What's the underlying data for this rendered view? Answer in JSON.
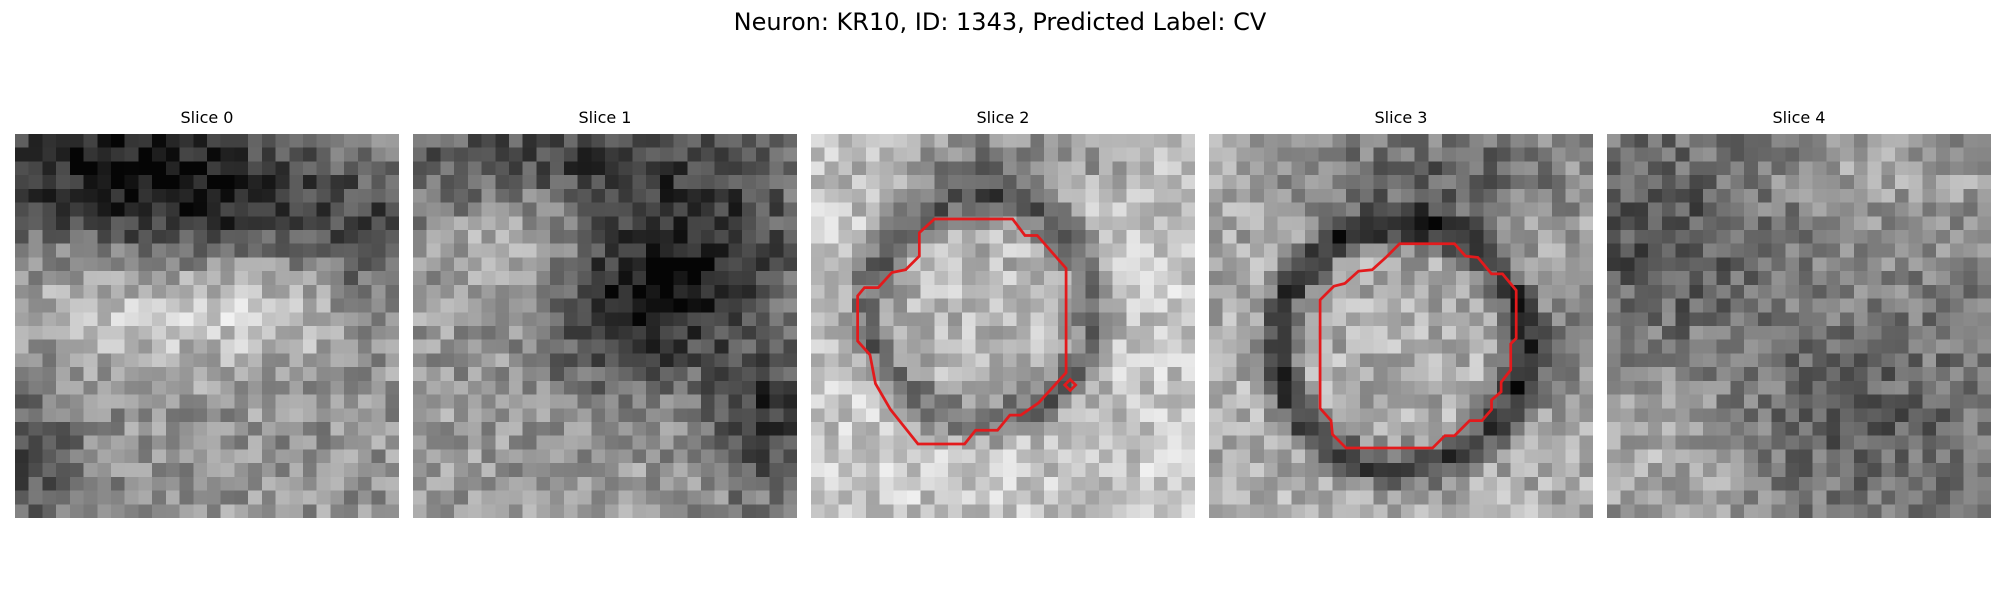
{
  "figure": {
    "title": "Neuron: KR10, ID: 1343, Predicted Label: CV",
    "contour_color": "#e31a1c",
    "colormap": "gray",
    "grid_size": 28
  },
  "slices": [
    {
      "label": "Slice 0",
      "has_contour": false
    },
    {
      "label": "Slice 1",
      "has_contour": false
    },
    {
      "label": "Slice 2",
      "has_contour": true
    },
    {
      "label": "Slice 3",
      "has_contour": true
    },
    {
      "label": "Slice 4",
      "has_contour": false
    }
  ]
}
